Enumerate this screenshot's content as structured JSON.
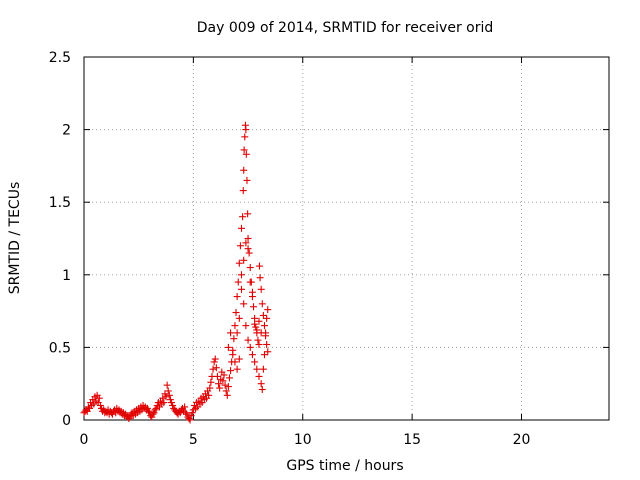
{
  "chart_data": {
    "type": "scatter",
    "title": "Day 009 of 2014, SRMTID for receiver orid",
    "xlabel": "GPS time / hours",
    "ylabel": "SRMTID / TECUs",
    "xlim": [
      0,
      24
    ],
    "ylim": [
      0,
      2.5
    ],
    "xticks": [
      0,
      5,
      10,
      15,
      20
    ],
    "yticks": [
      0,
      0.5,
      1,
      1.5,
      2,
      2.5
    ],
    "xtick_labels": [
      "0",
      "5",
      "10",
      "15",
      "20"
    ],
    "ytick_labels": [
      "0",
      "0.5",
      "1",
      "1.5",
      "2",
      "2.5"
    ],
    "grid": true,
    "marker": "+",
    "color": "#e00000",
    "series": [
      {
        "name": "SRMTID",
        "points": [
          [
            0.0,
            0.05
          ],
          [
            0.05,
            0.06
          ],
          [
            0.1,
            0.07
          ],
          [
            0.15,
            0.06
          ],
          [
            0.2,
            0.09
          ],
          [
            0.25,
            0.08
          ],
          [
            0.3,
            0.12
          ],
          [
            0.35,
            0.1
          ],
          [
            0.4,
            0.14
          ],
          [
            0.45,
            0.11
          ],
          [
            0.5,
            0.16
          ],
          [
            0.55,
            0.13
          ],
          [
            0.6,
            0.17
          ],
          [
            0.65,
            0.12
          ],
          [
            0.7,
            0.15
          ],
          [
            0.75,
            0.1
          ],
          [
            0.8,
            0.08
          ],
          [
            0.85,
            0.06
          ],
          [
            0.9,
            0.07
          ],
          [
            0.95,
            0.05
          ],
          [
            1.0,
            0.06
          ],
          [
            1.05,
            0.05
          ],
          [
            1.1,
            0.07
          ],
          [
            1.15,
            0.04
          ],
          [
            1.2,
            0.06
          ],
          [
            1.25,
            0.05
          ],
          [
            1.3,
            0.04
          ],
          [
            1.35,
            0.06
          ],
          [
            1.4,
            0.07
          ],
          [
            1.45,
            0.05
          ],
          [
            1.5,
            0.08
          ],
          [
            1.55,
            0.06
          ],
          [
            1.6,
            0.07
          ],
          [
            1.65,
            0.05
          ],
          [
            1.7,
            0.06
          ],
          [
            1.75,
            0.04
          ],
          [
            1.8,
            0.05
          ],
          [
            1.85,
            0.03
          ],
          [
            1.9,
            0.04
          ],
          [
            1.95,
            0.02
          ],
          [
            2.0,
            0.03
          ],
          [
            2.05,
            0.01
          ],
          [
            2.1,
            0.02
          ],
          [
            2.15,
            0.04
          ],
          [
            2.2,
            0.05
          ],
          [
            2.25,
            0.03
          ],
          [
            2.3,
            0.06
          ],
          [
            2.35,
            0.04
          ],
          [
            2.4,
            0.07
          ],
          [
            2.45,
            0.05
          ],
          [
            2.5,
            0.08
          ],
          [
            2.55,
            0.06
          ],
          [
            2.6,
            0.09
          ],
          [
            2.65,
            0.07
          ],
          [
            2.7,
            0.1
          ],
          [
            2.75,
            0.08
          ],
          [
            2.8,
            0.09
          ],
          [
            2.85,
            0.07
          ],
          [
            2.9,
            0.08
          ],
          [
            2.95,
            0.06
          ],
          [
            3.0,
            0.05
          ],
          [
            3.05,
            0.03
          ],
          [
            3.1,
            0.02
          ],
          [
            3.15,
            0.04
          ],
          [
            3.2,
            0.05
          ],
          [
            3.25,
            0.07
          ],
          [
            3.3,
            0.08
          ],
          [
            3.35,
            0.1
          ],
          [
            3.4,
            0.12
          ],
          [
            3.45,
            0.09
          ],
          [
            3.5,
            0.13
          ],
          [
            3.55,
            0.11
          ],
          [
            3.6,
            0.15
          ],
          [
            3.65,
            0.12
          ],
          [
            3.7,
            0.18
          ],
          [
            3.75,
            0.16
          ],
          [
            3.8,
            0.24
          ],
          [
            3.85,
            0.2
          ],
          [
            3.9,
            0.17
          ],
          [
            3.95,
            0.14
          ],
          [
            4.0,
            0.12
          ],
          [
            4.05,
            0.1
          ],
          [
            4.1,
            0.08
          ],
          [
            4.15,
            0.07
          ],
          [
            4.2,
            0.06
          ],
          [
            4.25,
            0.05
          ],
          [
            4.3,
            0.04
          ],
          [
            4.35,
            0.06
          ],
          [
            4.4,
            0.05
          ],
          [
            4.45,
            0.07
          ],
          [
            4.5,
            0.08
          ],
          [
            4.55,
            0.06
          ],
          [
            4.6,
            0.09
          ],
          [
            4.65,
            0.05
          ],
          [
            4.7,
            0.04
          ],
          [
            4.75,
            0.02
          ],
          [
            4.8,
            0.01
          ],
          [
            4.85,
            0.0
          ],
          [
            4.9,
            0.03
          ],
          [
            4.95,
            0.05
          ],
          [
            5.0,
            0.07
          ],
          [
            5.05,
            0.1
          ],
          [
            5.1,
            0.08
          ],
          [
            5.15,
            0.12
          ],
          [
            5.2,
            0.09
          ],
          [
            5.25,
            0.13
          ],
          [
            5.3,
            0.11
          ],
          [
            5.35,
            0.15
          ],
          [
            5.4,
            0.12
          ],
          [
            5.45,
            0.16
          ],
          [
            5.5,
            0.14
          ],
          [
            5.55,
            0.18
          ],
          [
            5.6,
            0.15
          ],
          [
            5.65,
            0.2
          ],
          [
            5.7,
            0.17
          ],
          [
            5.75,
            0.22
          ],
          [
            5.8,
            0.26
          ],
          [
            5.85,
            0.3
          ],
          [
            5.9,
            0.35
          ],
          [
            5.95,
            0.4
          ],
          [
            6.0,
            0.42
          ],
          [
            6.05,
            0.36
          ],
          [
            6.1,
            0.3
          ],
          [
            6.15,
            0.25
          ],
          [
            6.2,
            0.22
          ],
          [
            6.25,
            0.28
          ],
          [
            6.3,
            0.33
          ],
          [
            6.35,
            0.27
          ],
          [
            6.4,
            0.31
          ],
          [
            6.45,
            0.24
          ],
          [
            6.5,
            0.2
          ],
          [
            6.55,
            0.17
          ],
          [
            6.6,
            0.23
          ],
          [
            6.65,
            0.29
          ],
          [
            6.7,
            0.34
          ],
          [
            6.75,
            0.4
          ],
          [
            6.8,
            0.48
          ],
          [
            6.85,
            0.56
          ],
          [
            6.9,
            0.65
          ],
          [
            6.95,
            0.74
          ],
          [
            7.0,
            0.85
          ],
          [
            7.05,
            0.95
          ],
          [
            7.1,
            1.08
          ],
          [
            7.15,
            1.2
          ],
          [
            7.2,
            1.32
          ],
          [
            7.25,
            1.4
          ],
          [
            7.28,
            1.58
          ],
          [
            7.3,
            1.72
          ],
          [
            7.32,
            1.86
          ],
          [
            7.35,
            1.95
          ],
          [
            7.38,
            2.03
          ],
          [
            7.4,
            2.0
          ],
          [
            7.42,
            1.83
          ],
          [
            7.45,
            1.65
          ],
          [
            7.48,
            1.42
          ],
          [
            7.5,
            1.25
          ],
          [
            7.55,
            1.15
          ],
          [
            7.6,
            1.05
          ],
          [
            7.65,
            0.95
          ],
          [
            7.7,
            0.85
          ],
          [
            7.75,
            0.78
          ],
          [
            7.8,
            0.7
          ],
          [
            7.85,
            0.64
          ],
          [
            7.9,
            0.6
          ],
          [
            7.95,
            0.55
          ],
          [
            8.0,
            0.52
          ],
          [
            8.02,
            1.06
          ],
          [
            8.05,
            0.98
          ],
          [
            8.1,
            0.9
          ],
          [
            8.15,
            0.8
          ],
          [
            8.2,
            0.72
          ],
          [
            8.25,
            0.65
          ],
          [
            8.3,
            0.58
          ],
          [
            8.35,
            0.52
          ],
          [
            8.4,
            0.47
          ],
          [
            7.0,
            0.6
          ],
          [
            7.1,
            0.7
          ],
          [
            7.2,
            0.9
          ],
          [
            7.3,
            0.8
          ],
          [
            7.4,
            0.65
          ],
          [
            7.5,
            0.55
          ],
          [
            7.6,
            0.5
          ],
          [
            7.7,
            0.45
          ],
          [
            7.8,
            0.4
          ],
          [
            7.9,
            0.35
          ],
          [
            8.0,
            0.3
          ],
          [
            8.1,
            0.25
          ],
          [
            8.15,
            0.21
          ],
          [
            8.2,
            0.35
          ],
          [
            8.25,
            0.45
          ],
          [
            8.3,
            0.6
          ],
          [
            8.35,
            0.7
          ],
          [
            8.4,
            0.76
          ],
          [
            6.6,
            0.5
          ],
          [
            6.7,
            0.6
          ],
          [
            6.8,
            0.45
          ],
          [
            6.9,
            0.4
          ],
          [
            7.0,
            0.35
          ],
          [
            7.1,
            0.42
          ],
          [
            7.2,
            1.0
          ],
          [
            7.3,
            1.1
          ],
          [
            7.4,
            1.22
          ],
          [
            7.5,
            1.18
          ],
          [
            7.6,
            0.95
          ],
          [
            7.7,
            0.88
          ],
          [
            7.8,
            0.66
          ],
          [
            7.9,
            0.62
          ],
          [
            8.0,
            0.68
          ],
          [
            8.1,
            0.6
          ]
        ]
      }
    ]
  }
}
